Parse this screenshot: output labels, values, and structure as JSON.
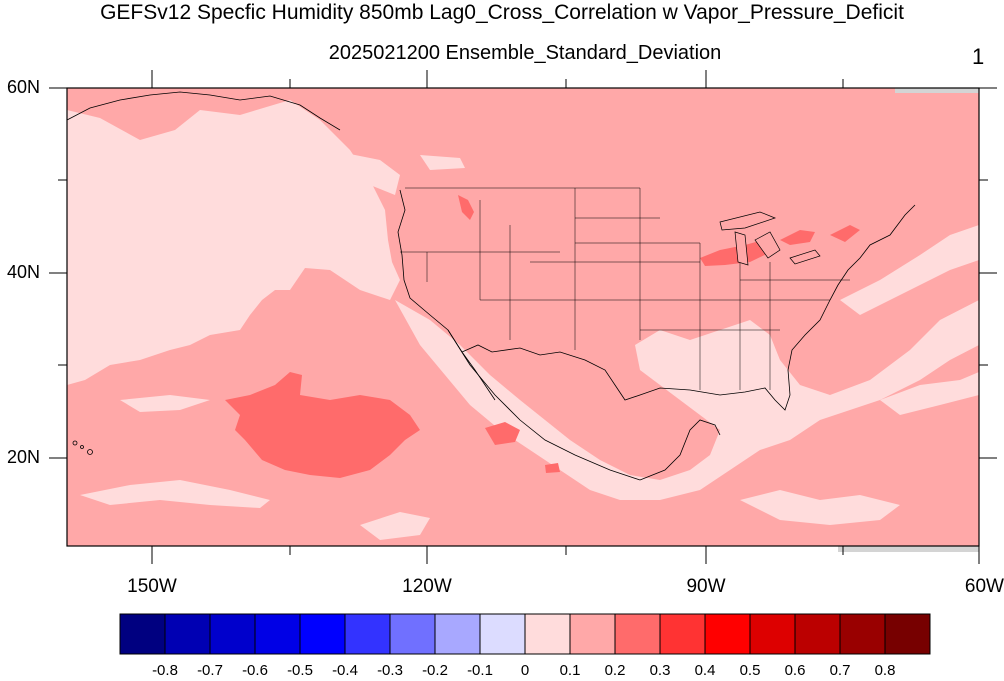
{
  "title": "GEFSv12 Specfic Humidity 850mb Lag0_Cross_Correlation w Vapor_Pressure_Deficit",
  "subtitle": "2025021200 Ensemble_Standard_Deviation",
  "panel_number": "1",
  "lat_labels": [
    "60N",
    "40N",
    "20N"
  ],
  "lon_labels": [
    "150W",
    "120W",
    "90W",
    "60W"
  ],
  "colorbar": {
    "colors": [
      "#000080",
      "#0000b3",
      "#0000cc",
      "#0000e6",
      "#0000ff",
      "#3333ff",
      "#7070ff",
      "#a8a8ff",
      "#dcdcff",
      "#ffdcdc",
      "#ffa8a8",
      "#ff6b6b",
      "#ff3333",
      "#ff0000",
      "#dd0000",
      "#bb0000",
      "#990000",
      "#770000"
    ],
    "labels": [
      "-0.8",
      "-0.7",
      "-0.6",
      "-0.5",
      "-0.4",
      "-0.3",
      "-0.2",
      "-0.1",
      "0",
      "0.1",
      "0.2",
      "0.3",
      "0.4",
      "0.5",
      "0.6",
      "0.7",
      "0.8"
    ]
  },
  "fill_colors": {
    "light": "#ffdcdc",
    "mid": "#ffa8a8",
    "strong": "#ff6b6b",
    "land_missing": "#d4d4d4"
  }
}
